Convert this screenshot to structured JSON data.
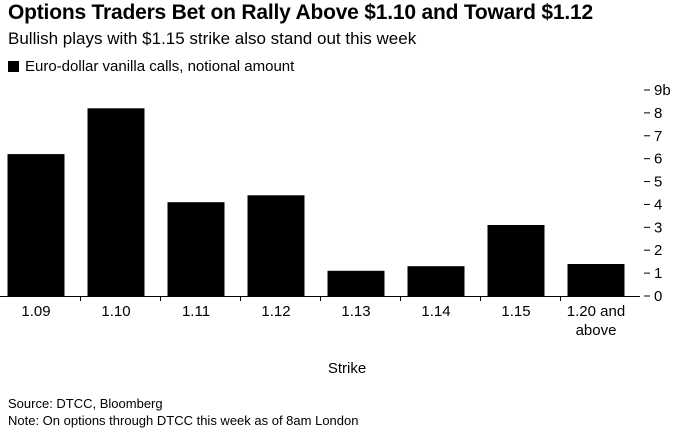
{
  "title": "Options Traders Bet on Rally Above $1.10 and Toward $1.12",
  "subtitle": "Bullish plays with $1.15 strike also stand out this week",
  "legend": {
    "label": "Euro-dollar vanilla calls, notional amount",
    "color": "#000000"
  },
  "footer": {
    "source": "Source: DTCC, Bloomberg",
    "note": "Note: On options through DTCC this week as of 8am London"
  },
  "chart_data": {
    "type": "bar",
    "title": "Options Traders Bet on Rally Above $1.10 and Toward $1.12",
    "subtitle": "Bullish plays with $1.15 strike also stand out this week",
    "xlabel": "Strike",
    "ylabel": "",
    "categories": [
      [
        "1.09"
      ],
      [
        "1.10"
      ],
      [
        "1.11"
      ],
      [
        "1.12"
      ],
      [
        "1.13"
      ],
      [
        "1.14"
      ],
      [
        "1.15"
      ],
      [
        "1.20 and",
        "above"
      ]
    ],
    "series": [
      {
        "name": "Euro-dollar vanilla calls, notional amount",
        "color": "#000000",
        "values": [
          6.2,
          8.2,
          4.1,
          4.4,
          1.1,
          1.3,
          3.1,
          1.4
        ]
      }
    ],
    "ylim": [
      0,
      9
    ],
    "yticks": [
      "0",
      "1",
      "2",
      "3",
      "4",
      "5",
      "6",
      "7",
      "8",
      "9b"
    ],
    "grid": false,
    "legend_position": "top-left"
  }
}
